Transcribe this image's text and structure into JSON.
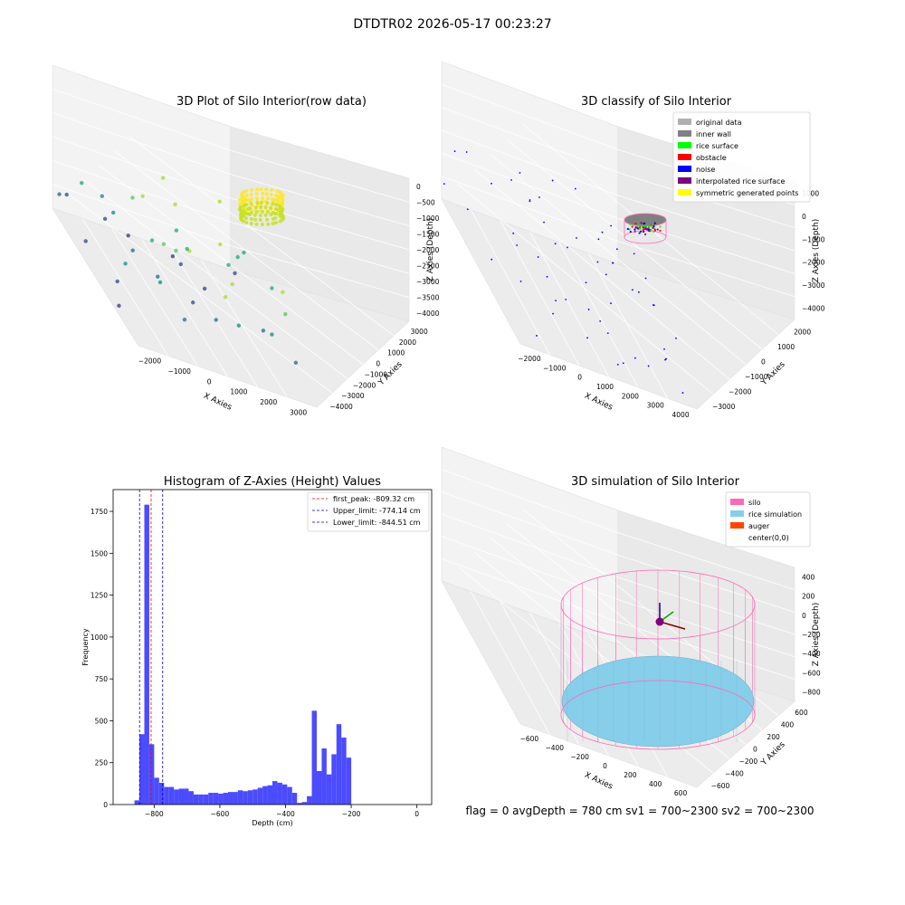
{
  "suptitle": "DTDTR02 2026-05-17 00:23:27",
  "footer": "flag = 0     avgDepth = 780 cm  sv1 = 700~2300  sv2 = 700~2300",
  "colors": {
    "grey_data": "#b0b0b0",
    "inner_wall": "#808080",
    "rice_surface": "#00ff00",
    "obstacle": "#ff0000",
    "noise": "#0000ff",
    "interpolated": "#800080",
    "symmetric": "#ffff00",
    "silo": "#ff69b4",
    "rice_sim": "#87ceeb",
    "auger": "#ff4500",
    "hist_bar": "#4b4bff",
    "peak_line": "#ff0000",
    "limit_line": "#0000cc"
  },
  "chart_data": [
    {
      "type": "scatter",
      "title": "3D Plot of Silo Interior(row data)",
      "xlabel": "X Axies",
      "ylabel": "Y Axies",
      "zlabel": "Z Axies (Depth)",
      "xticks": [
        "−2000",
        "−1000",
        "0",
        "1000",
        "2000",
        "3000"
      ],
      "yticks": [
        "−4000",
        "−3000",
        "−2000",
        "−1000",
        "0",
        "1000",
        "2000",
        "3000"
      ],
      "zticks": [
        "0",
        "−500",
        "−1000",
        "−1500",
        "−2000",
        "−2500",
        "−3000",
        "−3500",
        "−4000"
      ],
      "colormap": "viridis",
      "grid": true
    },
    {
      "type": "scatter",
      "title": "3D classify of Silo Interior",
      "xlabel": "X Axies",
      "ylabel": "Y Axies",
      "zlabel": "Z Axies (Depth)",
      "xticks": [
        "−2000",
        "−1000",
        "0",
        "1000",
        "2000",
        "3000",
        "4000"
      ],
      "yticks": [
        "−3000",
        "−2000",
        "−1000",
        "0",
        "1000",
        "2000"
      ],
      "zticks": [
        "1000",
        "0",
        "−1000",
        "−2000",
        "−3000",
        "−4000"
      ],
      "legend_position": "top-right",
      "legend": [
        {
          "label": "original data",
          "color": "#b0b0b0"
        },
        {
          "label": "inner wall",
          "color": "#808080"
        },
        {
          "label": "rice surface",
          "color": "#00ff00"
        },
        {
          "label": "obstacle",
          "color": "#ff0000"
        },
        {
          "label": "noise",
          "color": "#0000ff"
        },
        {
          "label": "interpolated rice surface",
          "color": "#800080"
        },
        {
          "label": "symmetric generated points",
          "color": "#ffff00"
        }
      ],
      "grid": true
    },
    {
      "type": "bar",
      "title": "Histogram of Z-Axies (Height) Values",
      "xlabel": "Depth (cm)",
      "ylabel": "Frequency",
      "xlim": [
        -925,
        45
      ],
      "ylim": [
        0,
        1880
      ],
      "xticks": [
        -800,
        -600,
        -400,
        -200,
        0
      ],
      "xtick_labels": [
        "−800",
        "−600",
        "−400",
        "−200",
        "0"
      ],
      "yticks": [
        0,
        250,
        500,
        750,
        1000,
        1250,
        1500,
        1750
      ],
      "bin_width": 15,
      "bin_start": -860,
      "values": [
        25,
        420,
        1790,
        360,
        160,
        130,
        105,
        105,
        90,
        95,
        95,
        80,
        60,
        60,
        60,
        70,
        70,
        65,
        70,
        75,
        75,
        85,
        80,
        85,
        90,
        100,
        110,
        115,
        140,
        130,
        120,
        105,
        70,
        10,
        15,
        50,
        560,
        200,
        335,
        180,
        300,
        480,
        400,
        280
      ],
      "lines": [
        {
          "label": "first_peak: -809.32 cm",
          "x": -809.32,
          "color": "#ff0000"
        },
        {
          "label": "Upper_limit: -774.14 cm",
          "x": -774.14,
          "color": "#0000cc"
        },
        {
          "label": "Lower_limit: -844.51 cm",
          "x": -844.51,
          "color": "#0000cc"
        }
      ],
      "legend_position": "top-right"
    },
    {
      "type": "surface",
      "title": "3D simulation of Silo Interior",
      "xlabel": "X Axies",
      "ylabel": "Y Axies",
      "zlabel": "Z Axies (Depth)",
      "xticks": [
        "−600",
        "−400",
        "−200",
        "0",
        "200",
        "400",
        "600"
      ],
      "yticks": [
        "−600",
        "−400",
        "−200",
        "0",
        "200",
        "400",
        "600"
      ],
      "zticks": [
        "400",
        "200",
        "0",
        "−200",
        "−400",
        "−600",
        "−800"
      ],
      "legend_position": "top-right",
      "legend": [
        {
          "label": "silo",
          "color": "#ff69b4"
        },
        {
          "label": "rice simulation",
          "color": "#87ceeb"
        },
        {
          "label": "auger",
          "color": "#ff4500"
        },
        {
          "label": "center(0,0)",
          "color": "#ffffff"
        }
      ],
      "grid": true
    }
  ]
}
